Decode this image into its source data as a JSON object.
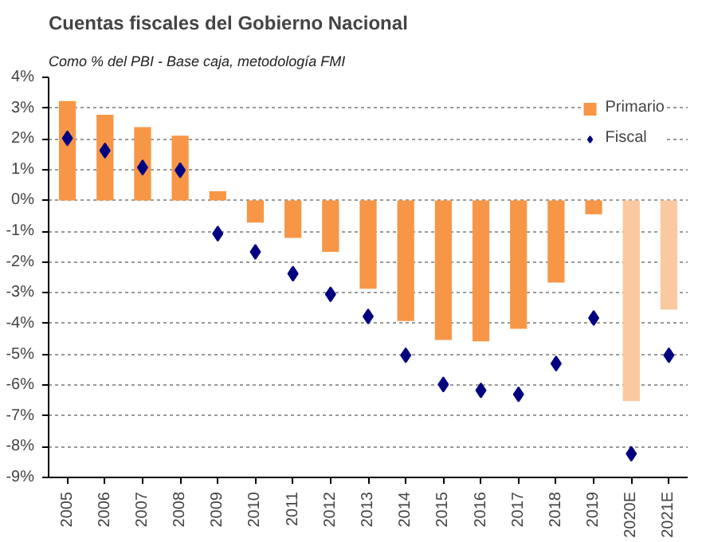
{
  "chart_data": {
    "type": "bar",
    "title": "Cuentas fiscales del Gobierno  Nacional",
    "subtitle": "Como % del PBI - Base caja, metodología FMI",
    "categories": [
      "2005",
      "2006",
      "2007",
      "2008",
      "2009",
      "2010",
      "2011",
      "2012",
      "2013",
      "2014",
      "2015",
      "2016",
      "2017",
      "2018",
      "2019",
      "2020E",
      "2021E"
    ],
    "series": [
      {
        "name": "Primario",
        "color": "#f79646",
        "colors": [
          null,
          null,
          null,
          null,
          null,
          null,
          null,
          null,
          null,
          null,
          null,
          null,
          null,
          null,
          null,
          "#fac9a0",
          "#fac9a0"
        ],
        "values": [
          3.23,
          2.78,
          2.38,
          2.1,
          0.3,
          -0.72,
          -1.22,
          -1.67,
          -2.87,
          -3.92,
          -4.53,
          -4.58,
          -4.17,
          -2.67,
          -0.45,
          -6.52,
          -3.55
        ]
      },
      {
        "name": "Fiscal",
        "type": "scatter",
        "marker": "diamond",
        "color": "#000080",
        "values": [
          2.02,
          1.62,
          1.07,
          0.98,
          -1.08,
          -1.67,
          -2.38,
          -3.05,
          -3.77,
          -5.03,
          -5.98,
          -6.17,
          -6.3,
          -5.3,
          -3.82,
          -8.23,
          -5.03
        ]
      }
    ],
    "ylim": [
      -9,
      4
    ],
    "yticks": [
      {
        "value": -9,
        "label": "-9%"
      },
      {
        "value": -8,
        "label": "-8%"
      },
      {
        "value": -7,
        "label": "-7%"
      },
      {
        "value": -6,
        "label": "-6%"
      },
      {
        "value": -5,
        "label": "-5%"
      },
      {
        "value": -4,
        "label": "-4%"
      },
      {
        "value": -3,
        "label": "-3%"
      },
      {
        "value": -2,
        "label": "-2%"
      },
      {
        "value": -1,
        "label": "-1%"
      },
      {
        "value": 0,
        "label": "0%"
      },
      {
        "value": 1,
        "label": "1%"
      },
      {
        "value": 2,
        "label": "2%"
      },
      {
        "value": 3,
        "label": "3%"
      },
      {
        "value": 4,
        "label": "4%"
      }
    ],
    "grid": "y",
    "legend": "top right"
  }
}
